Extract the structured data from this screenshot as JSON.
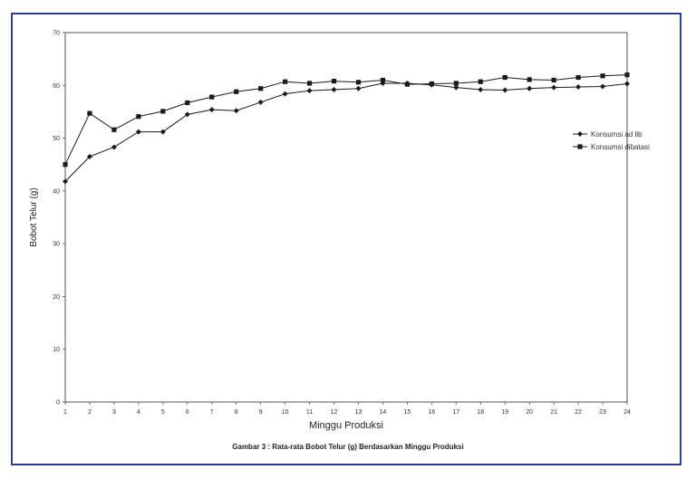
{
  "chart_data": {
    "type": "line",
    "title": "",
    "caption": "Gambar 3 : Rata-rata Bobot Telur (g) Berdasarkan Minggu Produksi",
    "xlabel": "Minggu Produksi",
    "ylabel": "Bobot Telur (g)",
    "ylim": [
      0,
      70
    ],
    "yticks": [
      0,
      10,
      20,
      30,
      40,
      50,
      60,
      70
    ],
    "x": [
      1,
      2,
      3,
      4,
      5,
      6,
      7,
      8,
      9,
      10,
      11,
      12,
      13,
      14,
      15,
      16,
      17,
      18,
      19,
      20,
      21,
      22,
      23,
      24
    ],
    "legend_position": "right",
    "grid": false,
    "series": [
      {
        "name": "Konsumsi ad lib",
        "marker": "diamond",
        "color": "#1a1a1a",
        "values": [
          41.8,
          46.5,
          48.3,
          51.2,
          51.2,
          54.5,
          55.4,
          55.2,
          56.8,
          58.4,
          59.0,
          59.2,
          59.4,
          60.4,
          60.4,
          60.1,
          59.6,
          59.2,
          59.1,
          59.4,
          59.6,
          59.7,
          59.8,
          60.3
        ]
      },
      {
        "name": "Konsumsi dibatasi",
        "marker": "square",
        "color": "#1a1a1a",
        "values": [
          45.0,
          54.7,
          51.6,
          54.1,
          55.1,
          56.7,
          57.8,
          58.8,
          59.4,
          60.7,
          60.4,
          60.8,
          60.6,
          61.0,
          60.2,
          60.3,
          60.4,
          60.7,
          61.5,
          61.1,
          61.0,
          61.5,
          61.8,
          62.0
        ]
      }
    ]
  }
}
